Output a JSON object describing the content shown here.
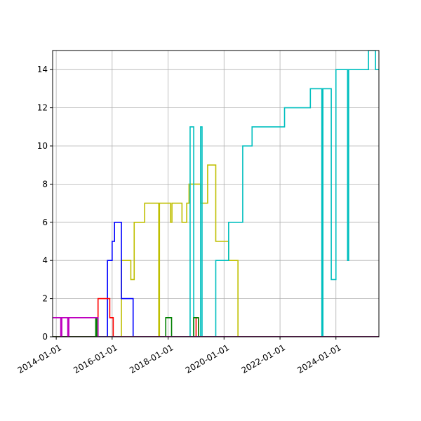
{
  "chart_data": {
    "type": "line",
    "title": "",
    "xlabel": "",
    "ylabel": "",
    "x_type": "date",
    "xlim": [
      "2013-11-15",
      "2025-07-15"
    ],
    "ylim": [
      0,
      15
    ],
    "grid": true,
    "legend": "none",
    "x_ticks": [
      "2014-01-01",
      "2016-01-01",
      "2018-01-01",
      "2020-01-01",
      "2022-01-01",
      "2024-01-01"
    ],
    "y_ticks": [
      0,
      2,
      4,
      6,
      8,
      10,
      12,
      14
    ],
    "series": [
      {
        "color": "#bfbf00",
        "points": [
          [
            "2013-11-15",
            0
          ],
          [
            "2016-05-01",
            0
          ],
          [
            "2016-05-01",
            4
          ],
          [
            "2016-09-01",
            4
          ],
          [
            "2016-09-01",
            3
          ],
          [
            "2016-10-15",
            3
          ],
          [
            "2016-10-15",
            6
          ],
          [
            "2017-03-01",
            6
          ],
          [
            "2017-03-01",
            7
          ],
          [
            "2017-09-01",
            7
          ],
          [
            "2017-09-01",
            0
          ],
          [
            "2017-09-10",
            0
          ],
          [
            "2017-09-10",
            7
          ],
          [
            "2018-02-01",
            7
          ],
          [
            "2018-02-01",
            6
          ],
          [
            "2018-02-20",
            6
          ],
          [
            "2018-02-20",
            7
          ],
          [
            "2018-07-01",
            7
          ],
          [
            "2018-07-01",
            6
          ],
          [
            "2018-09-01",
            6
          ],
          [
            "2018-09-01",
            7
          ],
          [
            "2018-10-01",
            7
          ],
          [
            "2018-10-01",
            8
          ],
          [
            "2019-03-01",
            8
          ],
          [
            "2019-03-01",
            7
          ],
          [
            "2019-06-01",
            7
          ],
          [
            "2019-06-01",
            9
          ],
          [
            "2019-09-15",
            9
          ],
          [
            "2019-09-15",
            5
          ],
          [
            "2020-01-01",
            5
          ],
          [
            "2020-01-01",
            5
          ],
          [
            "2020-03-01",
            5
          ],
          [
            "2020-03-01",
            4
          ],
          [
            "2020-07-01",
            4
          ],
          [
            "2020-07-01",
            0
          ],
          [
            "2025-07-15",
            0
          ]
        ]
      },
      {
        "color": "#00bfbf",
        "points": [
          [
            "2013-11-15",
            0
          ],
          [
            "2018-10-15",
            0
          ],
          [
            "2018-10-15",
            11
          ],
          [
            "2018-12-01",
            11
          ],
          [
            "2018-12-01",
            0
          ],
          [
            "2019-03-01",
            0
          ],
          [
            "2019-03-01",
            11
          ],
          [
            "2019-03-20",
            11
          ],
          [
            "2019-03-20",
            0
          ],
          [
            "2019-09-15",
            0
          ],
          [
            "2019-09-15",
            4
          ],
          [
            "2020-01-01",
            4
          ],
          [
            "2020-03-01",
            4
          ],
          [
            "2020-03-01",
            6
          ],
          [
            "2020-09-01",
            6
          ],
          [
            "2020-09-01",
            10
          ],
          [
            "2021-01-01",
            10
          ],
          [
            "2021-01-01",
            11
          ],
          [
            "2022-03-01",
            11
          ],
          [
            "2022-03-01",
            12
          ],
          [
            "2023-02-01",
            12
          ],
          [
            "2023-02-01",
            13
          ],
          [
            "2023-07-01",
            13
          ],
          [
            "2023-07-01",
            0
          ],
          [
            "2023-07-15",
            0
          ],
          [
            "2023-07-15",
            13
          ],
          [
            "2023-11-01",
            13
          ],
          [
            "2023-11-01",
            3
          ],
          [
            "2024-01-01",
            3
          ],
          [
            "2024-01-01",
            14
          ],
          [
            "2024-06-01",
            14
          ],
          [
            "2024-06-01",
            4
          ],
          [
            "2024-06-15",
            4
          ],
          [
            "2024-06-15",
            14
          ],
          [
            "2025-03-01",
            14
          ],
          [
            "2025-03-01",
            15
          ],
          [
            "2025-06-01",
            15
          ],
          [
            "2025-06-01",
            14
          ],
          [
            "2025-07-15",
            14
          ]
        ]
      },
      {
        "color": "#0000ff",
        "points": [
          [
            "2013-11-15",
            0
          ],
          [
            "2015-11-01",
            0
          ],
          [
            "2015-11-01",
            4
          ],
          [
            "2016-01-01",
            4
          ],
          [
            "2016-01-01",
            5
          ],
          [
            "2016-02-01",
            5
          ],
          [
            "2016-02-01",
            6
          ],
          [
            "2016-05-01",
            6
          ],
          [
            "2016-05-01",
            2
          ],
          [
            "2016-10-01",
            2
          ],
          [
            "2016-10-01",
            0
          ],
          [
            "2025-07-15",
            0
          ]
        ]
      },
      {
        "color": "#ff0000",
        "points": [
          [
            "2013-11-15",
            0
          ],
          [
            "2015-07-01",
            0
          ],
          [
            "2015-07-01",
            2
          ],
          [
            "2015-12-01",
            2
          ],
          [
            "2015-12-01",
            1
          ],
          [
            "2016-01-15",
            1
          ],
          [
            "2016-01-15",
            0
          ],
          [
            "2019-01-01",
            0
          ],
          [
            "2019-01-01",
            1
          ],
          [
            "2019-02-01",
            1
          ],
          [
            "2019-02-01",
            0
          ],
          [
            "2025-07-15",
            0
          ]
        ]
      },
      {
        "color": "#008000",
        "points": [
          [
            "2013-11-15",
            0
          ],
          [
            "2015-06-01",
            0
          ],
          [
            "2015-06-01",
            1
          ],
          [
            "2015-06-15",
            1
          ],
          [
            "2015-06-15",
            0
          ],
          [
            "2017-12-01",
            0
          ],
          [
            "2017-12-01",
            1
          ],
          [
            "2018-02-15",
            1
          ],
          [
            "2018-02-15",
            0
          ],
          [
            "2018-12-01",
            0
          ],
          [
            "2018-12-01",
            1
          ],
          [
            "2019-02-01",
            1
          ],
          [
            "2019-02-01",
            0
          ],
          [
            "2025-07-15",
            0
          ]
        ]
      },
      {
        "color": "#bf00bf",
        "points": [
          [
            "2013-11-15",
            1
          ],
          [
            "2014-03-01",
            1
          ],
          [
            "2014-03-01",
            0
          ],
          [
            "2014-03-15",
            0
          ],
          [
            "2014-03-15",
            1
          ],
          [
            "2014-06-01",
            1
          ],
          [
            "2014-06-01",
            0
          ],
          [
            "2014-06-15",
            0
          ],
          [
            "2014-06-15",
            1
          ],
          [
            "2015-07-01",
            1
          ],
          [
            "2015-07-01",
            0
          ],
          [
            "2025-07-15",
            0
          ]
        ]
      }
    ]
  }
}
